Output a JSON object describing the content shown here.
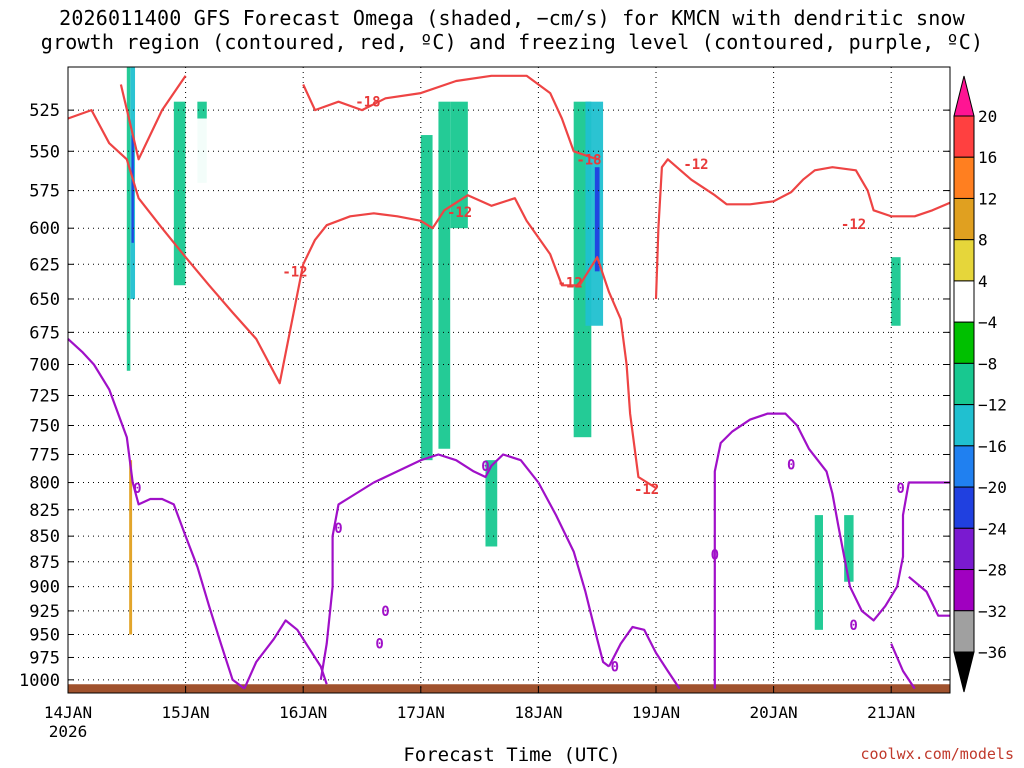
{
  "title": {
    "line1": "2026011400 GFS Forecast Omega (shaded, −cm/s) for KMCN with dendritic snow",
    "line2": "growth region (contoured, red, ºC) and freezing level (contoured, purple, ºC)"
  },
  "xlabel": "Forecast Time (UTC)",
  "credit": "coolwx.com/models",
  "chart_data": {
    "type": "heatmap",
    "x_first_label": [
      "14JAN",
      "2026"
    ],
    "x_ticks": [
      {
        "label": "14JAN",
        "x": 0
      },
      {
        "label": "15JAN",
        "x": 1
      },
      {
        "label": "16JAN",
        "x": 2
      },
      {
        "label": "17JAN",
        "x": 3
      },
      {
        "label": "18JAN",
        "x": 4
      },
      {
        "label": "19JAN",
        "x": 5
      },
      {
        "label": "20JAN",
        "x": 6
      },
      {
        "label": "21JAN",
        "x": 7
      }
    ],
    "xlim": [
      0,
      7.5
    ],
    "y_ticks": [
      525,
      550,
      575,
      600,
      625,
      650,
      675,
      700,
      725,
      750,
      775,
      800,
      825,
      850,
      875,
      900,
      925,
      950,
      975,
      1000
    ],
    "ylim": [
      1015,
      500
    ],
    "y_scale": "log",
    "grid": true,
    "colorbar": {
      "levels": [
        20,
        16,
        12,
        8,
        4,
        -4,
        -8,
        -12,
        -16,
        -20,
        -24,
        -28,
        -32,
        -36
      ],
      "colors": [
        "#ff1493",
        "#ff4040",
        "#ff7f20",
        "#e0a020",
        "#e6d63a",
        "#ffffff",
        "#00c000",
        "#18c890",
        "#20c0d0",
        "#2080f0",
        "#2040e0",
        "#7a1ad0",
        "#a000c0",
        "#a0a0a0",
        "#000000"
      ]
    },
    "shading": [
      {
        "x": 0.5,
        "x2": 0.53,
        "p1": 500,
        "p2": 705,
        "v": -8
      },
      {
        "x": 0.53,
        "x2": 0.57,
        "p1": 500,
        "p2": 650,
        "v": -12
      },
      {
        "x": 0.54,
        "x2": 0.56,
        "p1": 540,
        "p2": 610,
        "v": -20
      },
      {
        "x": 0.5,
        "x2": 0.56,
        "p1": 720,
        "p2": 975,
        "v": 4
      },
      {
        "x": 0.52,
        "x2": 0.545,
        "p1": 780,
        "p2": 950,
        "v": 12
      },
      {
        "x": 0.4,
        "x2": 0.43,
        "p1": 500,
        "p2": 640,
        "v": 4
      },
      {
        "x": 0.09,
        "x2": 0.12,
        "p1": 510,
        "p2": 620,
        "v": 4
      },
      {
        "x": 0.6,
        "x2": 0.66,
        "p1": 640,
        "p2": 820,
        "v": 4
      },
      {
        "x": 0.65,
        "x2": 0.7,
        "p1": 520,
        "p2": 620,
        "v": 4
      },
      {
        "x": 0.9,
        "x2": 1.0,
        "p1": 520,
        "p2": 640,
        "v": -8
      },
      {
        "x": 1.1,
        "x2": 1.18,
        "p1": 520,
        "p2": 570,
        "v": -8
      },
      {
        "x": 1.0,
        "x2": 1.25,
        "p1": 530,
        "p2": 950,
        "v": 4
      },
      {
        "x": 1.5,
        "x2": 1.65,
        "p1": 520,
        "p2": 900,
        "v": 4
      },
      {
        "x": 1.85,
        "x2": 1.98,
        "p1": 530,
        "p2": 900,
        "v": 4
      },
      {
        "x": 2.1,
        "x2": 2.18,
        "p1": 800,
        "p2": 940,
        "v": 4
      },
      {
        "x": 2.8,
        "x2": 2.95,
        "p1": 520,
        "p2": 560,
        "v": 4
      },
      {
        "x": 3.0,
        "x2": 3.1,
        "p1": 540,
        "p2": 780,
        "v": -8
      },
      {
        "x": 3.15,
        "x2": 3.25,
        "p1": 520,
        "p2": 770,
        "v": -8
      },
      {
        "x": 3.25,
        "x2": 3.4,
        "p1": 520,
        "p2": 600,
        "v": -8
      },
      {
        "x": 3.4,
        "x2": 3.45,
        "p1": 720,
        "p2": 810,
        "v": 4
      },
      {
        "x": 3.55,
        "x2": 3.65,
        "p1": 780,
        "p2": 860,
        "v": -8
      },
      {
        "x": 4.3,
        "x2": 4.45,
        "p1": 520,
        "p2": 760,
        "v": -8
      },
      {
        "x": 4.4,
        "x2": 4.55,
        "p1": 520,
        "p2": 670,
        "v": -12
      },
      {
        "x": 4.48,
        "x2": 4.52,
        "p1": 560,
        "p2": 630,
        "v": -20
      },
      {
        "x": 4.8,
        "x2": 5.25,
        "p1": 520,
        "p2": 720,
        "v": 4
      },
      {
        "x": 5.5,
        "x2": 5.55,
        "p1": 690,
        "p2": 740,
        "v": 4
      },
      {
        "x": 6.3,
        "x2": 6.6,
        "p1": 540,
        "p2": 680,
        "v": 4
      },
      {
        "x": 6.35,
        "x2": 6.42,
        "p1": 830,
        "p2": 945,
        "v": -8
      },
      {
        "x": 6.6,
        "x2": 6.68,
        "p1": 830,
        "p2": 895,
        "v": -8
      },
      {
        "x": 6.75,
        "x2": 7.0,
        "p1": 600,
        "p2": 680,
        "v": 4
      },
      {
        "x": 7.0,
        "x2": 7.08,
        "p1": 620,
        "p2": 670,
        "v": -8
      },
      {
        "x": 6.7,
        "x2": 7.2,
        "p1": 840,
        "p2": 950,
        "v": 4
      },
      {
        "x": 7.25,
        "x2": 7.5,
        "p1": 510,
        "p2": 540,
        "v": 4
      },
      {
        "x": 7.2,
        "x2": 7.3,
        "p1": 520,
        "p2": 700,
        "v": 4
      }
    ],
    "red_contours": [
      {
        "label": "-12",
        "points": [
          [
            0.0,
            530
          ],
          [
            0.2,
            525
          ],
          [
            0.35,
            545
          ],
          [
            0.5,
            555
          ],
          [
            0.6,
            580
          ],
          [
            0.8,
            600
          ],
          [
            1.0,
            620
          ],
          [
            1.2,
            640
          ],
          [
            1.4,
            660
          ],
          [
            1.6,
            680
          ],
          [
            1.8,
            715
          ],
          [
            2.0,
            625
          ],
          [
            2.1,
            608
          ],
          [
            2.2,
            598
          ],
          [
            2.4,
            592
          ],
          [
            2.6,
            590
          ],
          [
            2.8,
            592
          ],
          [
            3.0,
            595
          ],
          [
            3.1,
            600
          ],
          [
            3.2,
            588
          ],
          [
            3.4,
            578
          ],
          [
            3.6,
            585
          ],
          [
            3.8,
            580
          ],
          [
            3.9,
            595
          ],
          [
            4.1,
            618
          ],
          [
            4.2,
            640
          ],
          [
            4.35,
            640
          ],
          [
            4.5,
            620
          ],
          [
            4.6,
            645
          ],
          [
            4.7,
            665
          ],
          [
            4.75,
            700
          ],
          [
            4.78,
            740
          ],
          [
            4.85,
            795
          ],
          [
            5.0,
            805
          ]
        ]
      },
      {
        "label": "-18",
        "points": [
          [
            0.45,
            510
          ],
          [
            0.6,
            555
          ],
          [
            0.8,
            525
          ],
          [
            1.0,
            505
          ]
        ]
      },
      {
        "label": "-18",
        "points": [
          [
            2.0,
            510
          ],
          [
            2.1,
            525
          ],
          [
            2.3,
            520
          ],
          [
            2.5,
            525
          ],
          [
            2.7,
            518
          ],
          [
            3.0,
            515
          ],
          [
            3.3,
            508
          ],
          [
            3.6,
            505
          ],
          [
            3.9,
            505
          ],
          [
            4.1,
            515
          ],
          [
            4.2,
            530
          ],
          [
            4.3,
            550
          ],
          [
            4.5,
            555
          ]
        ]
      },
      {
        "label": "-12",
        "points": [
          [
            5.0,
            650
          ],
          [
            5.02,
            600
          ],
          [
            5.05,
            560
          ],
          [
            5.1,
            555
          ],
          [
            5.3,
            568
          ],
          [
            5.5,
            578
          ],
          [
            5.6,
            584
          ],
          [
            5.8,
            584
          ],
          [
            6.0,
            582
          ],
          [
            6.15,
            576
          ],
          [
            6.25,
            568
          ],
          [
            6.35,
            562
          ],
          [
            6.5,
            560
          ],
          [
            6.7,
            562
          ],
          [
            6.8,
            575
          ],
          [
            6.85,
            588
          ],
          [
            7.0,
            592
          ],
          [
            7.2,
            592
          ],
          [
            7.35,
            588
          ],
          [
            7.5,
            583
          ]
        ]
      }
    ],
    "purple_contours": [
      {
        "label": "0",
        "points": [
          [
            0.0,
            680
          ],
          [
            0.12,
            690
          ],
          [
            0.22,
            700
          ],
          [
            0.35,
            720
          ],
          [
            0.5,
            760
          ],
          [
            0.55,
            800
          ],
          [
            0.6,
            820
          ],
          [
            0.7,
            815
          ],
          [
            0.8,
            815
          ],
          [
            0.9,
            820
          ],
          [
            1.0,
            850
          ],
          [
            1.1,
            880
          ],
          [
            1.2,
            920
          ],
          [
            1.3,
            960
          ],
          [
            1.4,
            1000
          ],
          [
            1.5,
            1010
          ]
        ]
      },
      {
        "label": "0",
        "points": [
          [
            1.5,
            1010
          ],
          [
            1.6,
            980
          ],
          [
            1.75,
            955
          ],
          [
            1.85,
            935
          ],
          [
            1.95,
            945
          ],
          [
            2.05,
            965
          ],
          [
            2.15,
            985
          ],
          [
            2.2,
            1005
          ]
        ]
      },
      {
        "label": "0",
        "points": [
          [
            2.15,
            1000
          ],
          [
            2.2,
            960
          ],
          [
            2.25,
            900
          ],
          [
            2.25,
            850
          ],
          [
            2.3,
            820
          ],
          [
            2.45,
            810
          ],
          [
            2.6,
            800
          ],
          [
            2.8,
            790
          ],
          [
            3.0,
            780
          ],
          [
            3.15,
            775
          ],
          [
            3.3,
            780
          ],
          [
            3.45,
            790
          ],
          [
            3.55,
            795
          ],
          [
            3.6,
            785
          ],
          [
            3.7,
            775
          ],
          [
            3.85,
            780
          ],
          [
            4.0,
            800
          ],
          [
            4.15,
            830
          ],
          [
            4.3,
            865
          ],
          [
            4.4,
            905
          ],
          [
            4.5,
            955
          ],
          [
            4.55,
            980
          ],
          [
            4.6,
            985
          ]
        ]
      },
      {
        "label": "0",
        "points": [
          [
            4.6,
            985
          ],
          [
            4.7,
            960
          ],
          [
            4.8,
            942
          ],
          [
            4.9,
            945
          ],
          [
            5.0,
            970
          ],
          [
            5.1,
            990
          ],
          [
            5.2,
            1010
          ]
        ]
      },
      {
        "label": "0",
        "points": [
          [
            5.5,
            1010
          ],
          [
            5.5,
            950
          ],
          [
            5.5,
            900
          ],
          [
            5.5,
            830
          ],
          [
            5.5,
            790
          ],
          [
            5.55,
            765
          ],
          [
            5.65,
            755
          ],
          [
            5.8,
            745
          ],
          [
            5.95,
            740
          ],
          [
            6.1,
            740
          ],
          [
            6.2,
            750
          ],
          [
            6.3,
            770
          ],
          [
            6.45,
            790
          ],
          [
            6.5,
            810
          ],
          [
            6.55,
            840
          ],
          [
            6.6,
            870
          ],
          [
            6.65,
            900
          ],
          [
            6.75,
            925
          ],
          [
            6.85,
            935
          ],
          [
            6.95,
            920
          ],
          [
            7.05,
            900
          ],
          [
            7.1,
            870
          ],
          [
            7.1,
            830
          ],
          [
            7.15,
            800
          ],
          [
            7.3,
            800
          ],
          [
            7.5,
            800
          ]
        ]
      },
      {
        "label": "0",
        "points": [
          [
            7.0,
            960
          ],
          [
            7.1,
            990
          ],
          [
            7.2,
            1010
          ]
        ]
      },
      {
        "label": "0",
        "points": [
          [
            7.15,
            890
          ],
          [
            7.3,
            905
          ],
          [
            7.4,
            930
          ],
          [
            7.5,
            930
          ]
        ]
      }
    ],
    "contour_labels": [
      {
        "text": "-18",
        "x": 2.55,
        "p": 520,
        "color": "#e83a3a"
      },
      {
        "text": "-12",
        "x": 3.33,
        "p": 589,
        "color": "#e83a3a"
      },
      {
        "text": "-12",
        "x": 1.93,
        "p": 630,
        "color": "#e83a3a"
      },
      {
        "text": "-18",
        "x": 4.43,
        "p": 555,
        "color": "#e83a3a"
      },
      {
        "text": "-12",
        "x": 4.27,
        "p": 638,
        "color": "#e83a3a"
      },
      {
        "text": "-12",
        "x": 5.34,
        "p": 558,
        "color": "#e83a3a"
      },
      {
        "text": "-12",
        "x": 4.92,
        "p": 806,
        "color": "#e83a3a"
      },
      {
        "text": "-12",
        "x": 6.68,
        "p": 597,
        "color": "#e83a3a"
      },
      {
        "text": "0",
        "x": 0.59,
        "p": 805,
        "color": "#a010c8"
      },
      {
        "text": "0",
        "x": 2.3,
        "p": 842,
        "color": "#a010c8"
      },
      {
        "text": "0",
        "x": 3.55,
        "p": 785,
        "color": "#a010c8"
      },
      {
        "text": "0",
        "x": 2.65,
        "p": 960,
        "color": "#a010c8"
      },
      {
        "text": "0",
        "x": 2.7,
        "p": 925,
        "color": "#a010c8"
      },
      {
        "text": "0",
        "x": 4.65,
        "p": 985,
        "color": "#a010c8"
      },
      {
        "text": "0",
        "x": 5.5,
        "p": 868,
        "color": "#a010c8"
      },
      {
        "text": "0",
        "x": 6.15,
        "p": 784,
        "color": "#a010c8"
      },
      {
        "text": "0",
        "x": 6.68,
        "p": 940,
        "color": "#a010c8"
      },
      {
        "text": "0",
        "x": 7.08,
        "p": 805,
        "color": "#a010c8"
      }
    ],
    "terrain_color": "#a0522d",
    "red_color": "#ee4444",
    "purple_color": "#a010c8"
  }
}
